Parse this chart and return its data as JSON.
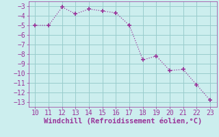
{
  "x": [
    10,
    11,
    12,
    13,
    14,
    15,
    16,
    17,
    18,
    19,
    20,
    21,
    22,
    23
  ],
  "y": [
    -5.0,
    -5.0,
    -3.1,
    -3.8,
    -3.3,
    -3.5,
    -3.7,
    -5.0,
    -8.6,
    -8.2,
    -9.7,
    -9.6,
    -11.2,
    -12.8
  ],
  "line_color": "#993399",
  "marker": "+",
  "marker_size": 4,
  "marker_lw": 1.2,
  "bg_color": "#cceeee",
  "grid_color": "#99cccc",
  "xlabel": "Windchill (Refroidissement éolien,°C)",
  "xlabel_color": "#993399",
  "xlabel_fontsize": 7.5,
  "xlim": [
    9.5,
    23.5
  ],
  "ylim": [
    -13.5,
    -2.5
  ],
  "xticks": [
    10,
    11,
    12,
    13,
    14,
    15,
    16,
    17,
    18,
    19,
    20,
    21,
    22,
    23
  ],
  "yticks": [
    -3,
    -4,
    -5,
    -6,
    -7,
    -8,
    -9,
    -10,
    -11,
    -12,
    -13
  ],
  "tick_color": "#993399",
  "tick_fontsize": 7.0,
  "spine_color": "#993399",
  "linewidth": 0.9,
  "linestyle": ":"
}
